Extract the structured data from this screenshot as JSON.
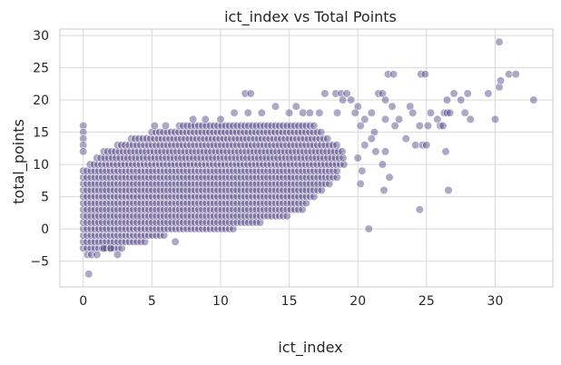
{
  "chart_data": {
    "type": "scatter",
    "title": "ict_index vs Total Points",
    "xlabel": "ict_index",
    "ylabel": "total_points",
    "xlim": [
      -1.7,
      34.2
    ],
    "ylim": [
      -9.0,
      31.0
    ],
    "xticks": [
      0,
      5,
      10,
      15,
      20,
      25,
      30
    ],
    "yticks": [
      -5,
      0,
      5,
      10,
      15,
      20,
      25,
      30
    ],
    "xtick_labels": [
      "0",
      "5",
      "10",
      "15",
      "20",
      "25",
      "30"
    ],
    "ytick_labels": [
      "−5",
      "0",
      "5",
      "10",
      "15",
      "20",
      "25",
      "30"
    ],
    "grid": true,
    "point_color": "#4c3d82",
    "point_alpha": 0.45,
    "dense_region": [
      {
        "y": -3,
        "x_min": 0,
        "x_max": 3.0
      },
      {
        "y": -2,
        "x_min": 0,
        "x_max": 4.5
      },
      {
        "y": -1,
        "x_min": 0,
        "x_max": 6.0
      },
      {
        "y": 0,
        "x_min": 0,
        "x_max": 11.0
      },
      {
        "y": 1,
        "x_min": 0,
        "x_max": 13.0
      },
      {
        "y": 2,
        "x_min": 0,
        "x_max": 15.0
      },
      {
        "y": 3,
        "x_min": 0,
        "x_max": 16.0
      },
      {
        "y": 4,
        "x_min": 0,
        "x_max": 16.5
      },
      {
        "y": 5,
        "x_min": 0,
        "x_max": 17.0
      },
      {
        "y": 6,
        "x_min": 0,
        "x_max": 17.5
      },
      {
        "y": 7,
        "x_min": 0,
        "x_max": 18.0
      },
      {
        "y": 8,
        "x_min": 0,
        "x_max": 18.5
      },
      {
        "y": 9,
        "x_min": 0,
        "x_max": 18.5
      },
      {
        "y": 10,
        "x_min": 0.5,
        "x_max": 19.0
      },
      {
        "y": 11,
        "x_min": 1.0,
        "x_max": 19.0
      },
      {
        "y": 12,
        "x_min": 1.5,
        "x_max": 19.0
      },
      {
        "y": 13,
        "x_min": 2.5,
        "x_max": 18.5
      },
      {
        "y": 14,
        "x_min": 3.5,
        "x_max": 18.0
      },
      {
        "y": 15,
        "x_min": 5.0,
        "x_max": 17.5
      },
      {
        "y": 16,
        "x_min": 7.0,
        "x_max": 17.0
      }
    ],
    "points": [
      {
        "x": 0,
        "y": 16
      },
      {
        "x": 0,
        "y": 15
      },
      {
        "x": 0,
        "y": 14
      },
      {
        "x": 0,
        "y": 13
      },
      {
        "x": 0,
        "y": 12
      },
      {
        "x": 0.3,
        "y": -4
      },
      {
        "x": 0.6,
        "y": -4
      },
      {
        "x": 0.4,
        "y": -7
      },
      {
        "x": 1.0,
        "y": -4
      },
      {
        "x": 2.5,
        "y": -4
      },
      {
        "x": 1.5,
        "y": -3
      },
      {
        "x": 2.0,
        "y": -3
      },
      {
        "x": 6.7,
        "y": -2
      },
      {
        "x": 5.2,
        "y": 16
      },
      {
        "x": 6.0,
        "y": 16
      },
      {
        "x": 8.0,
        "y": 17
      },
      {
        "x": 8.9,
        "y": 17
      },
      {
        "x": 10.0,
        "y": 17
      },
      {
        "x": 11.0,
        "y": 18
      },
      {
        "x": 11.8,
        "y": 21
      },
      {
        "x": 12.2,
        "y": 21
      },
      {
        "x": 12.0,
        "y": 18
      },
      {
        "x": 13.0,
        "y": 18
      },
      {
        "x": 14.0,
        "y": 19
      },
      {
        "x": 15.0,
        "y": 18
      },
      {
        "x": 15.5,
        "y": 19
      },
      {
        "x": 16.0,
        "y": 18
      },
      {
        "x": 16.5,
        "y": 18
      },
      {
        "x": 17.6,
        "y": 21
      },
      {
        "x": 17.2,
        "y": 18
      },
      {
        "x": 18.5,
        "y": 18
      },
      {
        "x": 18.4,
        "y": 21
      },
      {
        "x": 18.8,
        "y": 21
      },
      {
        "x": 19.2,
        "y": 21
      },
      {
        "x": 19.5,
        "y": 20
      },
      {
        "x": 18.9,
        "y": 20
      },
      {
        "x": 20.0,
        "y": 19
      },
      {
        "x": 19.8,
        "y": 18
      },
      {
        "x": 20.5,
        "y": 17
      },
      {
        "x": 21.0,
        "y": 18
      },
      {
        "x": 20.2,
        "y": 16
      },
      {
        "x": 21.5,
        "y": 21
      },
      {
        "x": 21.8,
        "y": 21
      },
      {
        "x": 22.0,
        "y": 20
      },
      {
        "x": 22.2,
        "y": 24
      },
      {
        "x": 22.6,
        "y": 24
      },
      {
        "x": 22.5,
        "y": 19
      },
      {
        "x": 23.0,
        "y": 17
      },
      {
        "x": 22.0,
        "y": 17
      },
      {
        "x": 22.7,
        "y": 16
      },
      {
        "x": 21.2,
        "y": 15
      },
      {
        "x": 21.0,
        "y": 14
      },
      {
        "x": 20.5,
        "y": 13
      },
      {
        "x": 21.3,
        "y": 12
      },
      {
        "x": 21.8,
        "y": 10
      },
      {
        "x": 20.0,
        "y": 11
      },
      {
        "x": 20.3,
        "y": 9
      },
      {
        "x": 20.2,
        "y": 7
      },
      {
        "x": 20.8,
        "y": 0
      },
      {
        "x": 22.3,
        "y": 8
      },
      {
        "x": 21.9,
        "y": 6
      },
      {
        "x": 22.0,
        "y": 12
      },
      {
        "x": 23.5,
        "y": 14
      },
      {
        "x": 23.8,
        "y": 19
      },
      {
        "x": 24.0,
        "y": 18
      },
      {
        "x": 24.6,
        "y": 24
      },
      {
        "x": 24.9,
        "y": 24
      },
      {
        "x": 24.5,
        "y": 16
      },
      {
        "x": 24.2,
        "y": 13
      },
      {
        "x": 24.7,
        "y": 13
      },
      {
        "x": 24.5,
        "y": 3
      },
      {
        "x": 25.0,
        "y": 13
      },
      {
        "x": 25.1,
        "y": 16
      },
      {
        "x": 25.3,
        "y": 18
      },
      {
        "x": 25.8,
        "y": 17
      },
      {
        "x": 26.0,
        "y": 16
      },
      {
        "x": 26.3,
        "y": 18
      },
      {
        "x": 26.5,
        "y": 18
      },
      {
        "x": 26.7,
        "y": 18
      },
      {
        "x": 26.5,
        "y": 20
      },
      {
        "x": 27.0,
        "y": 21
      },
      {
        "x": 27.5,
        "y": 20
      },
      {
        "x": 27.8,
        "y": 18
      },
      {
        "x": 28.0,
        "y": 21
      },
      {
        "x": 28.2,
        "y": 17
      },
      {
        "x": 26.4,
        "y": 12
      },
      {
        "x": 26.6,
        "y": 6
      },
      {
        "x": 26.2,
        "y": 16
      },
      {
        "x": 29.5,
        "y": 21
      },
      {
        "x": 30.0,
        "y": 17
      },
      {
        "x": 30.3,
        "y": 22
      },
      {
        "x": 30.4,
        "y": 23
      },
      {
        "x": 30.3,
        "y": 29
      },
      {
        "x": 31.0,
        "y": 24
      },
      {
        "x": 31.5,
        "y": 24
      },
      {
        "x": 32.8,
        "y": 20
      }
    ]
  }
}
